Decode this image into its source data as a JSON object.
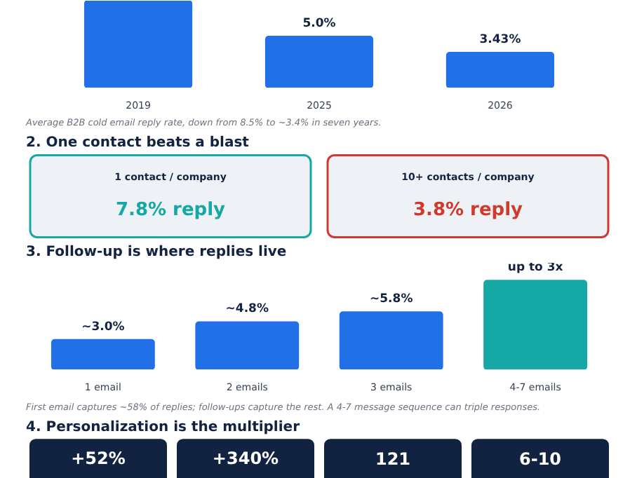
{
  "chart_data": [
    {
      "type": "bar",
      "categories": [
        "2019",
        "2025",
        "2026"
      ],
      "values": [
        8.5,
        5.0,
        3.43
      ],
      "value_labels": [
        null,
        "5.0%",
        "3.43%"
      ],
      "colors": [
        "#2170e8",
        "#2170e8",
        "#2170e8"
      ],
      "annotations": [
        "Average B2B cold email reply rate, down from 8.5% to ~3.4% in seven years."
      ]
    },
    {
      "type": "other",
      "title": "2.  One contact beats a blast",
      "annotations": [
        "1 contact / company",
        "7.8% reply",
        "10+ contacts / company",
        "3.8% reply"
      ],
      "colors": [
        "#16a8a4",
        "#d03a2c"
      ]
    },
    {
      "type": "bar",
      "title": "3.  Follow-up is where replies live",
      "categories": [
        "1 email",
        "2 emails",
        "3 emails",
        "4-7 emails"
      ],
      "values": [
        3.0,
        4.8,
        5.8,
        9.0
      ],
      "value_labels": [
        "~3.0%",
        "~4.8%",
        "~5.8%",
        "up to 3x"
      ],
      "colors": [
        "#2170e8",
        "#2170e8",
        "#2170e8",
        "#16a8a4"
      ],
      "annotations": [
        "First email captures ~58% of replies; follow-ups capture the rest. A 4-7 message sequence can triple responses."
      ]
    },
    {
      "type": "other",
      "title": "4.  Personalization is the multiplier",
      "annotations": [
        "+52%",
        "+340%",
        "121",
        "6-10"
      ],
      "colors": [
        "#112340",
        "#112340",
        "#112340",
        "#112340"
      ]
    }
  ]
}
